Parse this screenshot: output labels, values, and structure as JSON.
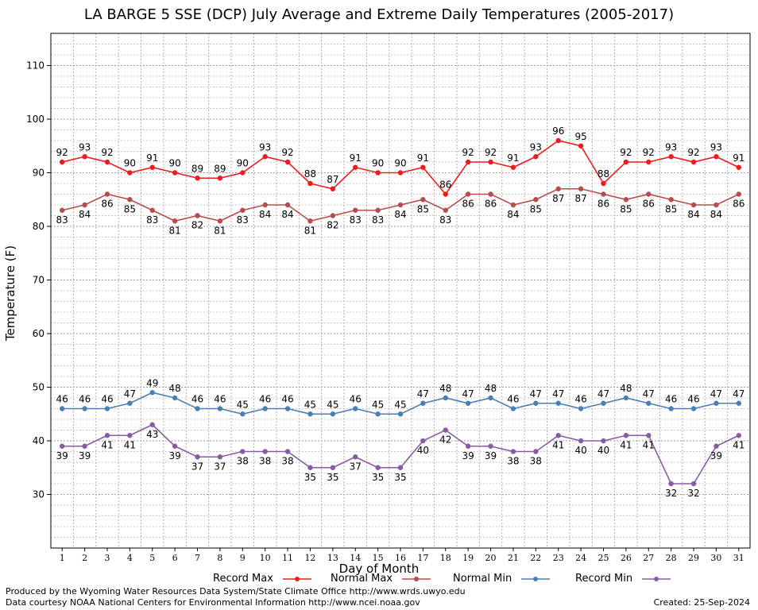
{
  "chart_data": {
    "type": "line",
    "title": "LA BARGE 5 SSE (DCP) July Average and Extreme Daily Temperatures (2005-2017)",
    "xlabel": "Day of Month",
    "ylabel": "Temperature (F)",
    "ylim": [
      20,
      116
    ],
    "xlim": [
      0.5,
      31.5
    ],
    "y_ticks": [
      30,
      40,
      50,
      60,
      70,
      80,
      90,
      100,
      110
    ],
    "x": [
      1,
      2,
      3,
      4,
      5,
      6,
      7,
      8,
      9,
      10,
      11,
      12,
      13,
      14,
      15,
      16,
      17,
      18,
      19,
      20,
      21,
      22,
      23,
      24,
      25,
      26,
      27,
      28,
      29,
      30,
      31
    ],
    "grid": true,
    "series": [
      {
        "name": "Record Max",
        "color": "#ee1c1c",
        "values": [
          92,
          93,
          92,
          90,
          91,
          90,
          89,
          89,
          90,
          93,
          92,
          88,
          87,
          91,
          90,
          90,
          91,
          86,
          92,
          92,
          91,
          93,
          96,
          95,
          88,
          92,
          92,
          93,
          92,
          93,
          91
        ]
      },
      {
        "name": "Normal Max",
        "color": "#b84c4c",
        "values": [
          83,
          84,
          86,
          85,
          83,
          81,
          82,
          81,
          83,
          84,
          84,
          81,
          82,
          83,
          83,
          84,
          85,
          83,
          86,
          86,
          84,
          85,
          87,
          87,
          86,
          85,
          86,
          85,
          84,
          84,
          86
        ]
      },
      {
        "name": "Normal Min",
        "color": "#4a7fb5",
        "values": [
          46,
          46,
          46,
          47,
          49,
          48,
          46,
          46,
          45,
          46,
          46,
          45,
          45,
          46,
          45,
          45,
          47,
          48,
          47,
          48,
          46,
          47,
          47,
          46,
          47,
          48,
          47,
          46,
          46,
          47,
          47
        ]
      },
      {
        "name": "Record Min",
        "color": "#8a5aa3",
        "values": [
          39,
          39,
          41,
          41,
          43,
          39,
          37,
          37,
          38,
          38,
          38,
          35,
          35,
          37,
          35,
          35,
          40,
          42,
          39,
          39,
          38,
          38,
          41,
          40,
          40,
          41,
          41,
          32,
          32,
          39,
          41
        ]
      }
    ]
  },
  "footer": {
    "line1": "Produced by the Wyoming Water Resources Data System/State Climate Office http://www.wrds.uwyo.edu",
    "line2": "Data courtesy NOAA National Centers for Environmental Information http://www.ncei.noaa.gov",
    "created": "Created:  25-Sep-2024"
  }
}
